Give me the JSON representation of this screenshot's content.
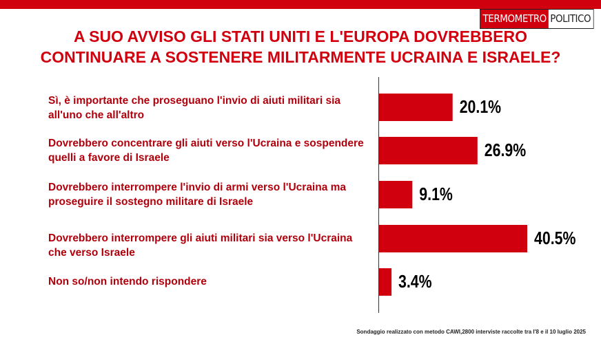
{
  "chart_data": {
    "type": "bar",
    "orientation": "horizontal",
    "title": "A SUO AVVISO GLI STATI UNITI E L'EUROPA DOVREBBERO CONTINUARE A SOSTENERE MILITARMENTE UCRAINA E ISRAELE?",
    "categories": [
      "Sì, è importante che proseguano l'invio di aiuti militari sia all'uno che all'altro",
      "Dovrebbero concentrare gli aiuti verso l'Ucraina e sospendere quelli a favore di Israele",
      "Dovrebbero interrompere l'invio di armi verso l'Ucraina ma proseguire il sostegno militare di Israele",
      "Dovrebbero interrompere gli aiuti militari sia verso l'Ucraina che verso Israele",
      "Non so/non intendo rispondere"
    ],
    "values": [
      20.1,
      26.9,
      9.1,
      40.5,
      3.4
    ],
    "value_labels": [
      "20.1%",
      "26.9%",
      "9.1%",
      "40.5%",
      "3.4%"
    ],
    "color": "#d0000f",
    "logo": [
      "TERMOMETRO",
      "POLITICO"
    ],
    "footnote": "Sondaggio realizzato con metodo CAWI,2800 interviste raccolte tra l'8 e il 10 luglio 2025"
  }
}
